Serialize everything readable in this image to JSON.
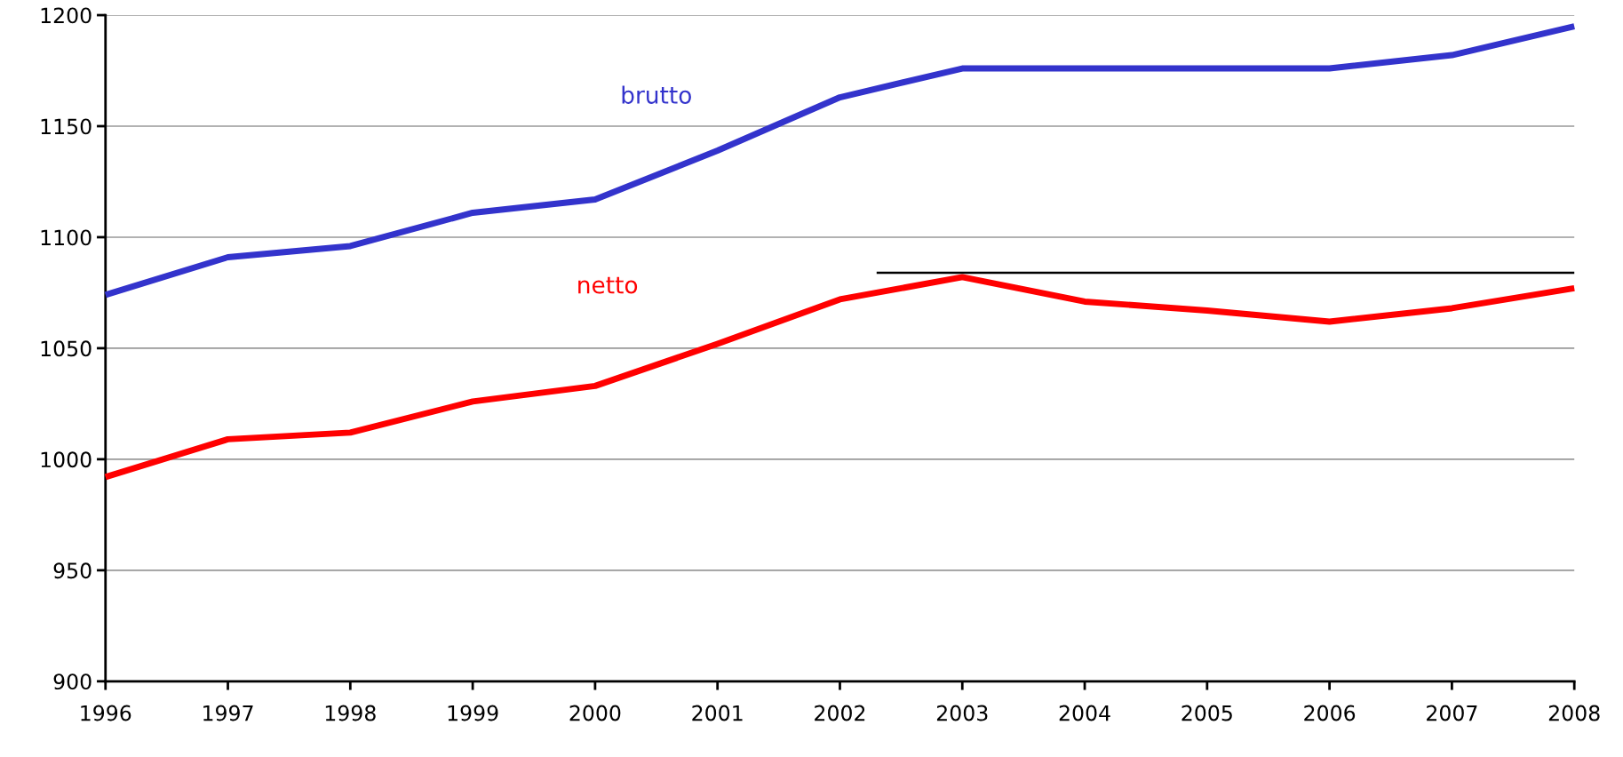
{
  "chart_data": {
    "type": "line",
    "x": [
      1996,
      1997,
      1998,
      1999,
      2000,
      2001,
      2002,
      2003,
      2004,
      2005,
      2006,
      2007,
      2008
    ],
    "series": [
      {
        "name": "brutto",
        "color": "#3333cc",
        "values": [
          1074,
          1091,
          1096,
          1111,
          1117,
          1139,
          1163,
          1176,
          1176,
          1176,
          1176,
          1182,
          1195
        ]
      },
      {
        "name": "netto",
        "color": "#ff0000",
        "values": [
          992,
          1009,
          1012,
          1026,
          1033,
          1052,
          1072,
          1082,
          1071,
          1067,
          1062,
          1068,
          1077
        ]
      },
      {
        "color": "#000000",
        "x": [
          2002.3,
          2008
        ],
        "values": [
          1084,
          1084
        ]
      }
    ],
    "xlim": [
      1996,
      2008
    ],
    "xticks": [
      1996,
      1997,
      1998,
      1999,
      2000,
      2001,
      2002,
      2003,
      2004,
      2005,
      2006,
      2007,
      2008
    ],
    "ylim": [
      900,
      1200
    ],
    "yticks": [
      900,
      950,
      1000,
      1050,
      1100,
      1150,
      1200
    ],
    "grid": "y",
    "legend": false,
    "marker": "none",
    "line_style": "solid"
  }
}
